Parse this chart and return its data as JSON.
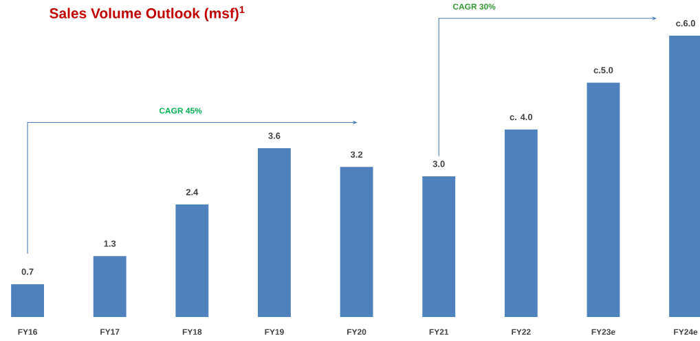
{
  "chart_data": {
    "type": "bar",
    "title": "Sales Volume Outlook (msf)$^{1}$",
    "categories": [
      "FY16",
      "FY17",
      "FY18",
      "FY19",
      "FY20",
      "FY21",
      "FY22",
      "FY23e",
      "FY24e"
    ],
    "values": [
      0.7,
      1.3,
      2.4,
      3.6,
      3.2,
      3.0,
      4.0,
      5.0,
      6.0
    ],
    "value_labels": [
      "0.7",
      "1.3",
      "2.4",
      "3.6",
      "3.2",
      "3.0",
      "c. 4.0",
      "c.5.0",
      "c.6.0"
    ],
    "color": "#4f81bd",
    "annotations": [
      "CAGR 45%",
      "CAGR 30%"
    ]
  }
}
